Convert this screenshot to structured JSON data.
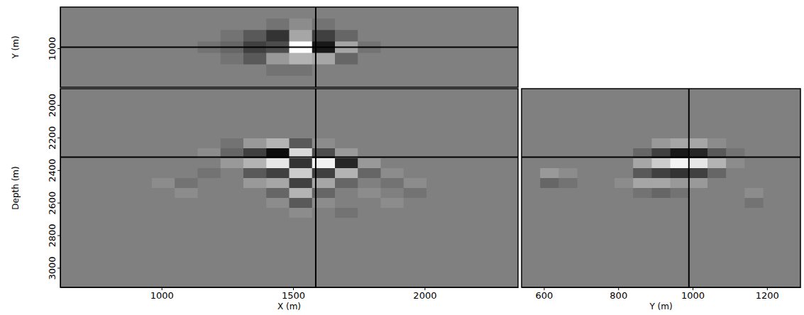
{
  "chart_data": [
    {
      "type": "heatmap",
      "ylabel": "Y (m)",
      "tick_labels": "y",
      "xlim": [
        615,
        2355
      ],
      "ylim": [
        1340,
        640
      ],
      "yticks": [
        1000
      ],
      "zlim": [
        -1,
        1
      ],
      "crosshair": {
        "x": 1586,
        "y": 990
      },
      "x_edges": [
        615,
        702,
        789,
        876,
        963,
        1050,
        1137,
        1224,
        1311,
        1398,
        1485,
        1572,
        1659,
        1746,
        1833,
        1920,
        2007,
        2094,
        2181,
        2268,
        2355
      ],
      "y_edges": [
        640,
        740,
        840,
        940,
        1040,
        1140,
        1240,
        1340
      ],
      "z": [
        [
          0,
          0,
          0,
          0,
          0,
          0,
          0,
          0,
          0,
          0,
          0,
          0,
          0,
          0,
          0,
          0,
          0,
          0,
          0,
          0
        ],
        [
          0,
          0,
          0,
          0,
          0,
          0,
          0,
          0,
          0,
          -0.1,
          0.1,
          -0.1,
          0,
          0,
          0,
          0,
          0,
          0,
          0,
          0
        ],
        [
          0,
          0,
          0,
          0,
          0,
          0,
          0,
          -0.1,
          -0.3,
          -0.6,
          0.3,
          -0.5,
          -0.2,
          0,
          0,
          0,
          0,
          0,
          0,
          0
        ],
        [
          0,
          0,
          0,
          0,
          0,
          0,
          -0.1,
          -0.2,
          -0.5,
          -0.4,
          1,
          -0.8,
          0.3,
          -0.1,
          0,
          0,
          0,
          0,
          0,
          0
        ],
        [
          0,
          0,
          0,
          0,
          0,
          0,
          0,
          -0.1,
          -0.3,
          0.2,
          0.4,
          0.3,
          -0.2,
          0,
          0,
          0,
          0,
          0,
          0,
          0
        ],
        [
          0,
          0,
          0,
          0,
          0,
          0,
          0,
          0,
          0,
          -0.1,
          -0.1,
          0,
          0,
          0,
          0,
          0,
          0,
          0,
          0,
          0
        ],
        [
          0,
          0,
          0,
          0,
          0,
          0,
          0,
          0,
          0,
          0,
          0,
          0,
          0,
          0,
          0,
          0,
          0,
          0,
          0,
          0
        ]
      ]
    },
    {
      "type": "heatmap",
      "xlabel": "X (m)",
      "ylabel": "Depth (m)",
      "xlim": [
        615,
        2355
      ],
      "ylim": [
        3120,
        1900
      ],
      "xticks": [
        1000,
        1500,
        2000
      ],
      "yticks": [
        2000,
        2200,
        2400,
        2600,
        2800,
        3000
      ],
      "zlim": [
        -1,
        1
      ],
      "crosshair": {
        "x": 1586,
        "y": 2320
      },
      "x_edges": [
        615,
        702,
        789,
        876,
        963,
        1050,
        1137,
        1224,
        1311,
        1398,
        1485,
        1572,
        1659,
        1746,
        1833,
        1920,
        2007,
        2094,
        2181,
        2268,
        2355
      ],
      "y_edges": [
        1900,
        1961,
        2022,
        2083,
        2144,
        2205,
        2266,
        2327,
        2388,
        2449,
        2510,
        2571,
        2632,
        2693,
        2754,
        2815,
        2876,
        2937,
        2998,
        3059,
        3120
      ],
      "z": [
        [
          0,
          0,
          0,
          0,
          0,
          0,
          0,
          0,
          0,
          0,
          0,
          0,
          0,
          0,
          0,
          0,
          0,
          0,
          0,
          0
        ],
        [
          0,
          0,
          0,
          0,
          0,
          0,
          0,
          0,
          0,
          0,
          0,
          0,
          0,
          0,
          0,
          0,
          0,
          0,
          0,
          0
        ],
        [
          0,
          0,
          0,
          0,
          0,
          0,
          0,
          0,
          0,
          0,
          0,
          0,
          0,
          0,
          0,
          0,
          0,
          0,
          0,
          0
        ],
        [
          0,
          0,
          0,
          0,
          0,
          0,
          0,
          0,
          0,
          0,
          0,
          0,
          0,
          0,
          0,
          0,
          0,
          0,
          0,
          0
        ],
        [
          0,
          0,
          0,
          0,
          0,
          0,
          0,
          0,
          0,
          0,
          0,
          0,
          0,
          0,
          0,
          0,
          0,
          0,
          0,
          0
        ],
        [
          0,
          0,
          0,
          0,
          0,
          0,
          0,
          -0.1,
          0.2,
          0.4,
          -0.3,
          0.1,
          0,
          0,
          0,
          0,
          0,
          0,
          0,
          0
        ],
        [
          0,
          0,
          0,
          0,
          0,
          0,
          0.1,
          -0.2,
          -0.5,
          -0.9,
          0.7,
          -0.4,
          0.2,
          0,
          0,
          0,
          0,
          0,
          0,
          0
        ],
        [
          0,
          0,
          0,
          0,
          0,
          0,
          0,
          0.2,
          0.4,
          0.8,
          -0.6,
          0.9,
          -0.7,
          0.2,
          0,
          0,
          0,
          0,
          0,
          0
        ],
        [
          0,
          0,
          0,
          0,
          0,
          0,
          -0.1,
          0,
          -0.3,
          -0.5,
          0.6,
          -0.5,
          0.4,
          -0.2,
          0.1,
          0,
          0,
          0,
          0,
          0
        ],
        [
          0,
          0,
          0,
          0,
          0.1,
          -0.1,
          0,
          0,
          0.2,
          0.3,
          -0.5,
          0.3,
          -0.2,
          0,
          -0.1,
          0.1,
          0,
          0,
          0,
          0
        ],
        [
          0,
          0,
          0,
          0,
          0,
          0.1,
          0,
          0,
          0,
          -0.2,
          0.4,
          -0.2,
          0,
          0.1,
          0,
          -0.1,
          0,
          0,
          0,
          0
        ],
        [
          0,
          0,
          0,
          0,
          0,
          0,
          0,
          0,
          0,
          0.1,
          -0.3,
          0.1,
          0,
          0,
          0.1,
          0,
          0,
          0,
          0,
          0
        ],
        [
          0,
          0,
          0,
          0,
          0,
          0,
          0,
          0,
          0,
          0,
          0.1,
          0,
          -0.1,
          0,
          0,
          0,
          0,
          0,
          0,
          0
        ],
        [
          0,
          0,
          0,
          0,
          0,
          0,
          0,
          0,
          0,
          0,
          0,
          0,
          0,
          0,
          0,
          0,
          0,
          0,
          0,
          0
        ],
        [
          0,
          0,
          0,
          0,
          0,
          0,
          0,
          0,
          0,
          0,
          0,
          0,
          0,
          0,
          0,
          0,
          0,
          0,
          0,
          0
        ],
        [
          0,
          0,
          0,
          0,
          0,
          0,
          0,
          0,
          0,
          0,
          0,
          0,
          0,
          0,
          0,
          0,
          0,
          0,
          0,
          0
        ],
        [
          0,
          0,
          0,
          0,
          0,
          0,
          0,
          0,
          0,
          0,
          0,
          0,
          0,
          0,
          0,
          0,
          0,
          0,
          0,
          0
        ],
        [
          0,
          0,
          0,
          0,
          0,
          0,
          0,
          0,
          0,
          0,
          0,
          0,
          0,
          0,
          0,
          0,
          0,
          0,
          0,
          0
        ],
        [
          0,
          0,
          0,
          0,
          0,
          0,
          0,
          0,
          0,
          0,
          0,
          0,
          0,
          0,
          0,
          0,
          0,
          0,
          0,
          0
        ],
        [
          0,
          0,
          0,
          0,
          0,
          0,
          0,
          0,
          0,
          0,
          0,
          0,
          0,
          0,
          0,
          0,
          0,
          0,
          0,
          0
        ]
      ]
    },
    {
      "type": "heatmap",
      "xlabel": "Y (m)",
      "tick_labels": "x",
      "xlim": [
        540,
        1290
      ],
      "ylim": [
        3120,
        1900
      ],
      "xticks": [
        600,
        800,
        1000,
        1200
      ],
      "zlim": [
        -1,
        1
      ],
      "crosshair": {
        "x": 990,
        "y": 2320
      },
      "x_edges": [
        540,
        590,
        640,
        690,
        740,
        790,
        840,
        890,
        940,
        990,
        1040,
        1090,
        1140,
        1190,
        1240,
        1290
      ],
      "y_edges": [
        1900,
        1961,
        2022,
        2083,
        2144,
        2205,
        2266,
        2327,
        2388,
        2449,
        2510,
        2571,
        2632,
        2693,
        2754,
        2815,
        2876,
        2937,
        2998,
        3059,
        3120
      ],
      "z": [
        [
          0,
          0,
          0,
          0,
          0,
          0,
          0,
          0,
          0,
          0,
          0,
          0,
          0,
          0,
          0
        ],
        [
          0,
          0,
          0,
          0,
          0,
          0,
          0,
          0,
          0,
          0,
          0,
          0,
          0,
          0,
          0
        ],
        [
          0,
          0,
          0,
          0,
          0,
          0,
          0,
          0,
          0,
          0,
          0,
          0,
          0,
          0,
          0
        ],
        [
          0,
          0,
          0,
          0,
          0,
          0,
          0,
          0,
          0,
          0,
          0,
          0,
          0,
          0,
          0
        ],
        [
          0,
          0,
          0,
          0,
          0,
          0,
          0,
          0,
          0,
          0,
          0,
          0,
          0,
          0,
          0
        ],
        [
          0,
          0,
          0,
          0,
          0,
          0,
          0,
          0.2,
          0.3,
          0.3,
          0.1,
          0,
          0,
          0,
          0
        ],
        [
          0,
          0,
          0,
          0,
          0,
          0,
          -0.2,
          -0.5,
          -0.8,
          -0.7,
          -0.3,
          -0.1,
          0,
          0,
          0
        ],
        [
          0,
          0,
          0,
          0,
          0,
          0,
          0.3,
          0.6,
          0.9,
          0.8,
          0.4,
          0.1,
          0,
          0,
          0
        ],
        [
          0,
          0.2,
          0.1,
          0,
          0,
          0,
          -0.3,
          -0.5,
          -0.6,
          -0.5,
          -0.2,
          0,
          0,
          0,
          0
        ],
        [
          0,
          -0.2,
          -0.1,
          0,
          0,
          0.1,
          0.3,
          0.3,
          0.2,
          0.2,
          0,
          0,
          0,
          0,
          0
        ],
        [
          0,
          0,
          0,
          0,
          0,
          0,
          -0.1,
          -0.2,
          -0.1,
          0,
          0,
          0,
          0.1,
          0,
          0
        ],
        [
          0,
          0,
          0,
          0,
          0,
          0,
          0,
          0,
          0,
          0,
          0,
          0,
          -0.1,
          0,
          0
        ],
        [
          0,
          0,
          0,
          0,
          0,
          0,
          0,
          0,
          0,
          0,
          0,
          0,
          0,
          0,
          0
        ],
        [
          0,
          0,
          0,
          0,
          0,
          0,
          0,
          0,
          0,
          0,
          0,
          0,
          0,
          0,
          0
        ],
        [
          0,
          0,
          0,
          0,
          0,
          0,
          0,
          0,
          0,
          0,
          0,
          0,
          0,
          0,
          0
        ],
        [
          0,
          0,
          0,
          0,
          0,
          0,
          0,
          0,
          0,
          0,
          0,
          0,
          0,
          0,
          0
        ],
        [
          0,
          0,
          0,
          0,
          0,
          0,
          0,
          0,
          0,
          0,
          0,
          0,
          0,
          0,
          0
        ],
        [
          0,
          0,
          0,
          0,
          0,
          0,
          0,
          0,
          0,
          0,
          0,
          0,
          0,
          0,
          0
        ],
        [
          0,
          0,
          0,
          0,
          0,
          0,
          0,
          0,
          0,
          0,
          0,
          0,
          0,
          0,
          0
        ],
        [
          0,
          0,
          0,
          0,
          0,
          0,
          0,
          0,
          0,
          0,
          0,
          0,
          0,
          0,
          0
        ]
      ]
    }
  ]
}
